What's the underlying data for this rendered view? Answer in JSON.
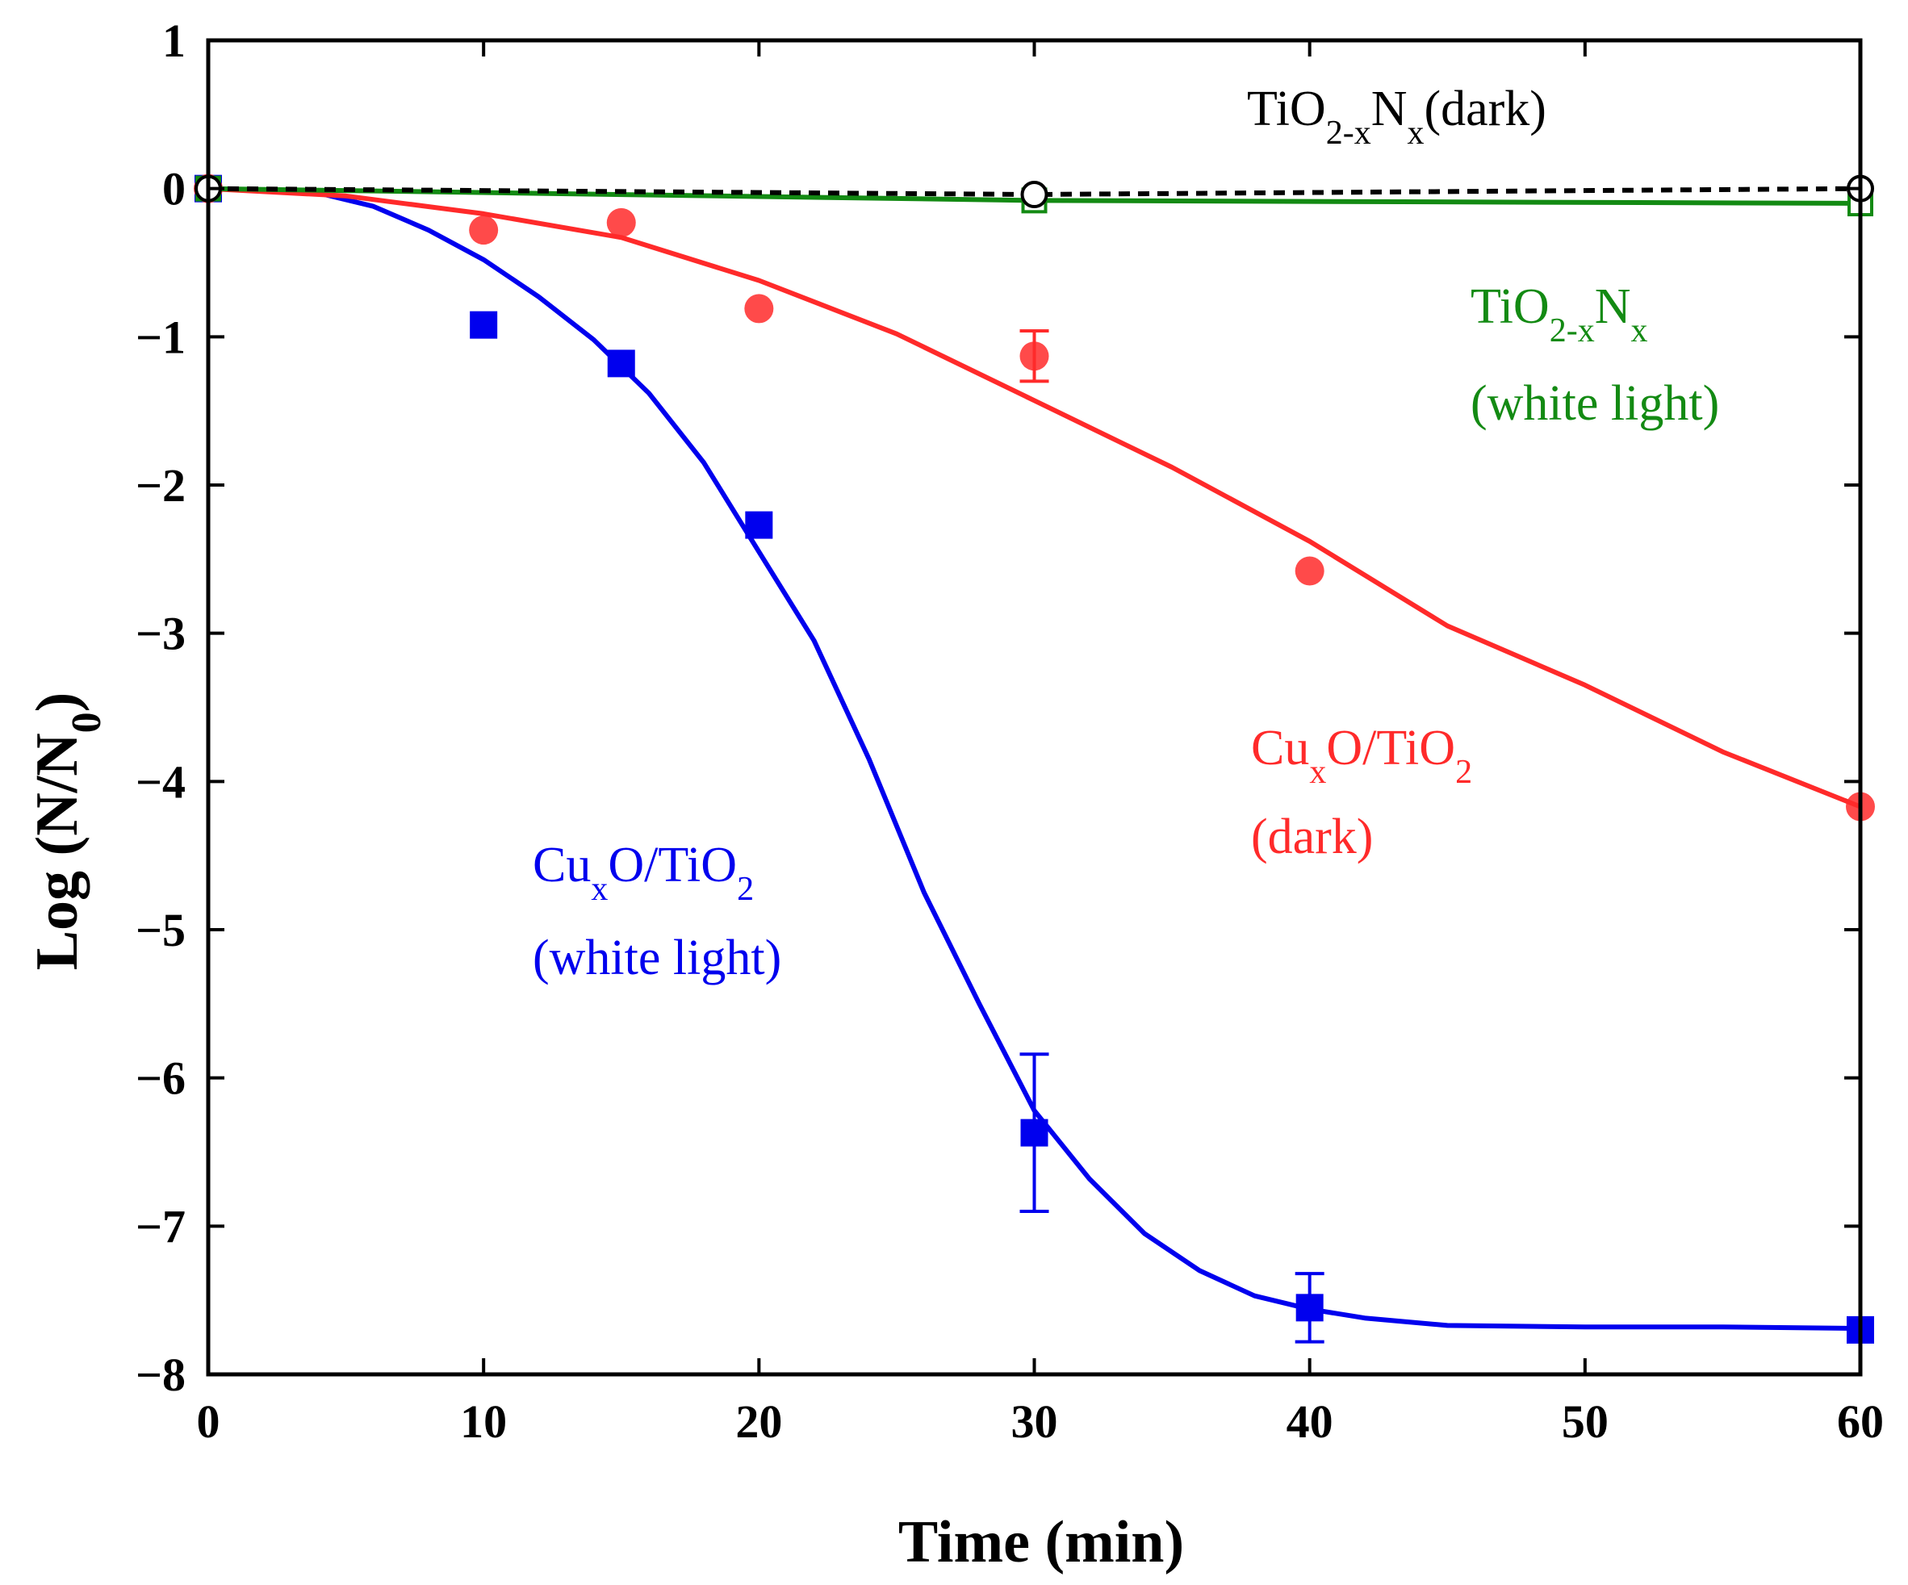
{
  "chart_data": {
    "type": "scatter",
    "xlabel": "Time (min)",
    "ylabel": {
      "main": "Log (N/N",
      "sub": "0",
      "close": ")"
    },
    "xlim": [
      0,
      60
    ],
    "ylim": [
      -8,
      1
    ],
    "xticks": [
      0,
      10,
      20,
      30,
      40,
      50,
      60
    ],
    "yticks": [
      1,
      0,
      -1,
      -2,
      -3,
      -4,
      -5,
      -6,
      -7,
      -8
    ],
    "ytick_labels": [
      "1",
      "0",
      "−1",
      "−2",
      "−3",
      "−4",
      "−5",
      "−6",
      "−7",
      "−8"
    ],
    "grid": false,
    "series": [
      {
        "key": "cuxo_light",
        "color": "#0000ee",
        "marker": "square-filled",
        "points": [
          {
            "x": 0,
            "y": 0.0
          },
          {
            "x": 10,
            "y": -0.92
          },
          {
            "x": 15,
            "y": -1.18
          },
          {
            "x": 20,
            "y": -2.27
          },
          {
            "x": 30,
            "y": -6.37,
            "err": 0.53
          },
          {
            "x": 40,
            "y": -7.55,
            "err": 0.23
          },
          {
            "x": 60,
            "y": -7.7
          }
        ],
        "fit": [
          [
            0,
            0.0
          ],
          [
            2,
            -0.01
          ],
          [
            4,
            -0.03
          ],
          [
            6,
            -0.12
          ],
          [
            8,
            -0.28
          ],
          [
            10,
            -0.48
          ],
          [
            12,
            -0.73
          ],
          [
            14,
            -1.02
          ],
          [
            16,
            -1.38
          ],
          [
            18,
            -1.85
          ],
          [
            20,
            -2.45
          ],
          [
            22,
            -3.05
          ],
          [
            24,
            -3.85
          ],
          [
            26,
            -4.75
          ],
          [
            28,
            -5.5
          ],
          [
            30,
            -6.22
          ],
          [
            32,
            -6.68
          ],
          [
            34,
            -7.05
          ],
          [
            36,
            -7.3
          ],
          [
            38,
            -7.47
          ],
          [
            40,
            -7.56
          ],
          [
            42,
            -7.62
          ],
          [
            45,
            -7.67
          ],
          [
            50,
            -7.68
          ],
          [
            55,
            -7.68
          ],
          [
            60,
            -7.69
          ]
        ]
      },
      {
        "key": "cuxo_dark",
        "color": "#ff2a2a",
        "marker": "circle-filled",
        "points": [
          {
            "x": 0,
            "y": 0.0
          },
          {
            "x": 10,
            "y": -0.28
          },
          {
            "x": 15,
            "y": -0.23
          },
          {
            "x": 20,
            "y": -0.81
          },
          {
            "x": 30,
            "y": -1.13,
            "err": 0.17
          },
          {
            "x": 40,
            "y": -2.58
          },
          {
            "x": 60,
            "y": -4.17
          }
        ],
        "fit": [
          [
            0,
            0.0
          ],
          [
            5,
            -0.05
          ],
          [
            10,
            -0.17
          ],
          [
            15,
            -0.33
          ],
          [
            20,
            -0.62
          ],
          [
            25,
            -0.98
          ],
          [
            30,
            -1.43
          ],
          [
            35,
            -1.88
          ],
          [
            40,
            -2.38
          ],
          [
            45,
            -2.95
          ],
          [
            50,
            -3.35
          ],
          [
            55,
            -3.8
          ],
          [
            60,
            -4.17
          ]
        ]
      },
      {
        "key": "tio2_light",
        "color": "#138a13",
        "marker": "square-open",
        "points": [
          {
            "x": 0,
            "y": 0.0
          },
          {
            "x": 30,
            "y": -0.08
          },
          {
            "x": 60,
            "y": -0.1
          }
        ],
        "fit": [
          [
            0,
            0.0
          ],
          [
            30,
            -0.08
          ],
          [
            60,
            -0.1
          ]
        ]
      },
      {
        "key": "tio2_dark",
        "color": "#000000",
        "marker": "circle-open",
        "dashed": true,
        "points": [
          {
            "x": 0,
            "y": 0.0
          },
          {
            "x": 30,
            "y": -0.04
          },
          {
            "x": 60,
            "y": 0.0
          }
        ],
        "fit": [
          [
            0,
            0.0
          ],
          [
            30,
            -0.04
          ],
          [
            60,
            0.0
          ]
        ]
      }
    ],
    "annotations": {
      "tio2_dark": {
        "color": "#000000",
        "line1": [
          {
            "t": "TiO"
          },
          {
            "t": "2-x",
            "sub": true
          },
          {
            "t": "N"
          },
          {
            "t": "x",
            "sub": true
          },
          {
            "t": "(dark)"
          }
        ]
      },
      "tio2_light": {
        "color": "#138a13",
        "line1": [
          {
            "t": "TiO"
          },
          {
            "t": "2-x",
            "sub": true
          },
          {
            "t": "N"
          },
          {
            "t": "x",
            "sub": true
          }
        ],
        "line2": "(white light)"
      },
      "cuxo_dark": {
        "color": "#ff2a2a",
        "line1": [
          {
            "t": "Cu"
          },
          {
            "t": "x",
            "sub": true
          },
          {
            "t": "O/TiO"
          },
          {
            "t": "2",
            "sub": true
          }
        ],
        "line2": "(dark)"
      },
      "cuxo_light": {
        "color": "#0000ee",
        "line1": [
          {
            "t": "Cu"
          },
          {
            "t": "x",
            "sub": true
          },
          {
            "t": "O/TiO"
          },
          {
            "t": "2",
            "sub": true
          }
        ],
        "line2": "(white light)"
      }
    }
  }
}
